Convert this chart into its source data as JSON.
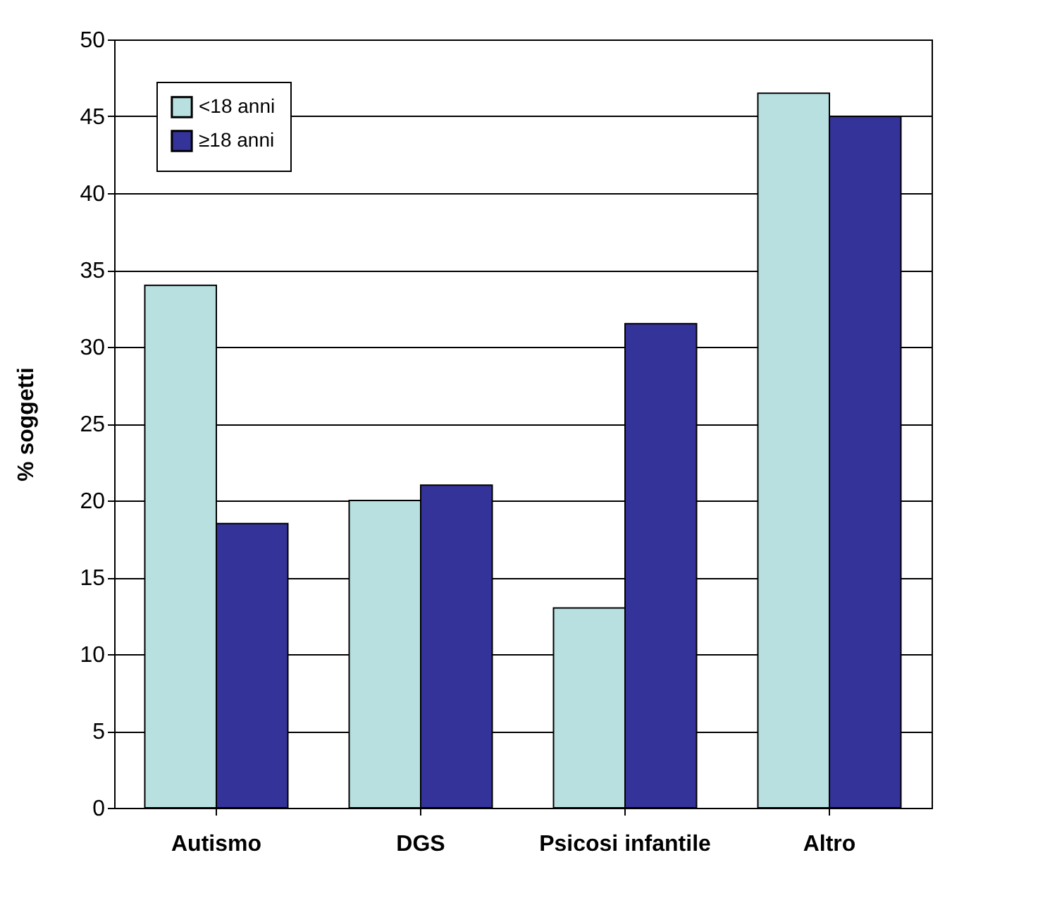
{
  "chart_data": {
    "type": "bar",
    "ylabel": "% soggetti",
    "categories": [
      "Autismo",
      "DGS",
      "Psicosi infantile",
      "Altro"
    ],
    "series": [
      {
        "name": "<18 anni",
        "color": "#b8e0e0",
        "values": [
          34,
          20,
          13,
          46.5
        ]
      },
      {
        "name": "≥18 anni",
        "color": "#333399",
        "values": [
          18.5,
          21,
          31.5,
          45
        ]
      }
    ],
    "ylim": [
      0,
      50
    ],
    "yticks": [
      0,
      5,
      10,
      15,
      20,
      25,
      30,
      35,
      40,
      45,
      50
    ],
    "grid": "y",
    "legend": "top left"
  }
}
